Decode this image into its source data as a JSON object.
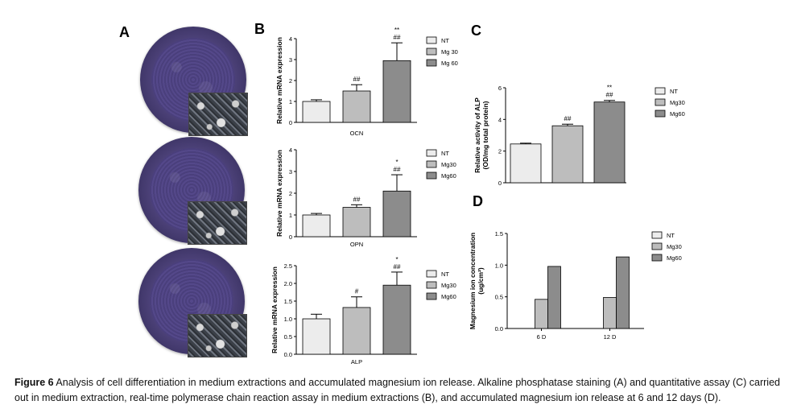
{
  "panels": {
    "a": "A",
    "b": "B",
    "c": "C",
    "d": "D"
  },
  "caption": {
    "label": "Figure 6",
    "text": "Analysis of cell differentiation in medium extractions and accumulated magnesium ion release. Alkaline phosphatase staining (A) and quantitative assay (C) carried out in medium extraction, real-time polymerase chain reaction assay in medium extractions (B), and accumulated magnesium ion release at 6 and 12 days (D)."
  },
  "chart_data": [
    {
      "id": "B-OCN",
      "type": "bar",
      "categories": [
        "NT",
        "Mg 30",
        "Mg 60"
      ],
      "values": [
        1.0,
        1.5,
        2.95
      ],
      "errors": [
        0.08,
        0.3,
        0.85
      ],
      "annotations": [
        "",
        "##",
        "##\n**"
      ],
      "xlabel": "OCN",
      "ylabel": "Relative mRNA expression",
      "ylim": [
        0,
        4
      ],
      "yticks": [
        0,
        1,
        2,
        3,
        4
      ],
      "legend": [
        "NT",
        "Mg 30",
        "Mg 60"
      ],
      "colors": [
        "#ececec",
        "#bdbdbd",
        "#8c8c8c"
      ]
    },
    {
      "id": "B-OPN",
      "type": "bar",
      "categories": [
        "NT",
        "Mg30",
        "Mg60"
      ],
      "values": [
        1.0,
        1.35,
        2.1
      ],
      "errors": [
        0.07,
        0.12,
        0.75
      ],
      "annotations": [
        "",
        "##",
        "##\n*"
      ],
      "xlabel": "OPN",
      "ylabel": "Relative mRNA expression",
      "ylim": [
        0,
        4
      ],
      "yticks": [
        0,
        1,
        2,
        3,
        4
      ],
      "legend": [
        "NT",
        "Mg30",
        "Mg60"
      ],
      "colors": [
        "#ececec",
        "#bdbdbd",
        "#8c8c8c"
      ]
    },
    {
      "id": "B-ALP",
      "type": "bar",
      "categories": [
        "NT",
        "Mg30",
        "Mg60"
      ],
      "values": [
        1.0,
        1.32,
        1.95
      ],
      "errors": [
        0.13,
        0.3,
        0.37
      ],
      "annotations": [
        "",
        "#",
        "##\n*"
      ],
      "xlabel": "ALP",
      "ylabel": "Relative mRNA expression",
      "ylim": [
        0,
        2.5
      ],
      "yticks": [
        0,
        0.5,
        1.0,
        1.5,
        2.0,
        2.5
      ],
      "legend": [
        "NT",
        "Mg30",
        "Mg60"
      ],
      "colors": [
        "#ececec",
        "#bdbdbd",
        "#8c8c8c"
      ]
    },
    {
      "id": "C",
      "type": "bar",
      "categories": [
        "NT",
        "Mg30",
        "Mg60"
      ],
      "values": [
        2.45,
        3.6,
        5.1
      ],
      "errors": [
        0.05,
        0.1,
        0.1
      ],
      "annotations": [
        "",
        "##",
        "##\n**"
      ],
      "xlabel": "",
      "ylabel": "Relative activity of ALP\n(OD/mg total protein)",
      "ylim": [
        0,
        6
      ],
      "yticks": [
        0,
        2,
        4,
        6
      ],
      "legend": [
        "NT",
        "Mg30",
        "Mg60"
      ],
      "colors": [
        "#ececec",
        "#bdbdbd",
        "#8c8c8c"
      ]
    },
    {
      "id": "D",
      "type": "bar",
      "categories": [
        "6 D",
        "12 D"
      ],
      "series": [
        {
          "name": "NT",
          "values": [
            0,
            0
          ]
        },
        {
          "name": "Mg30",
          "values": [
            0.46,
            0.49
          ]
        },
        {
          "name": "Mg60",
          "values": [
            0.98,
            1.13
          ]
        }
      ],
      "xlabel": "",
      "ylabel": "Magnesium ion concentration\n(ug/cm²)",
      "ylim": [
        0,
        1.5
      ],
      "yticks": [
        0.0,
        0.5,
        1.0,
        1.5
      ],
      "yticklabels": [
        "0.0",
        "0.5",
        "1.0",
        "1.5"
      ],
      "legend": [
        "NT",
        "Mg30",
        "Mg60"
      ],
      "colors": [
        "#ececec",
        "#bdbdbd",
        "#8c8c8c"
      ]
    }
  ]
}
